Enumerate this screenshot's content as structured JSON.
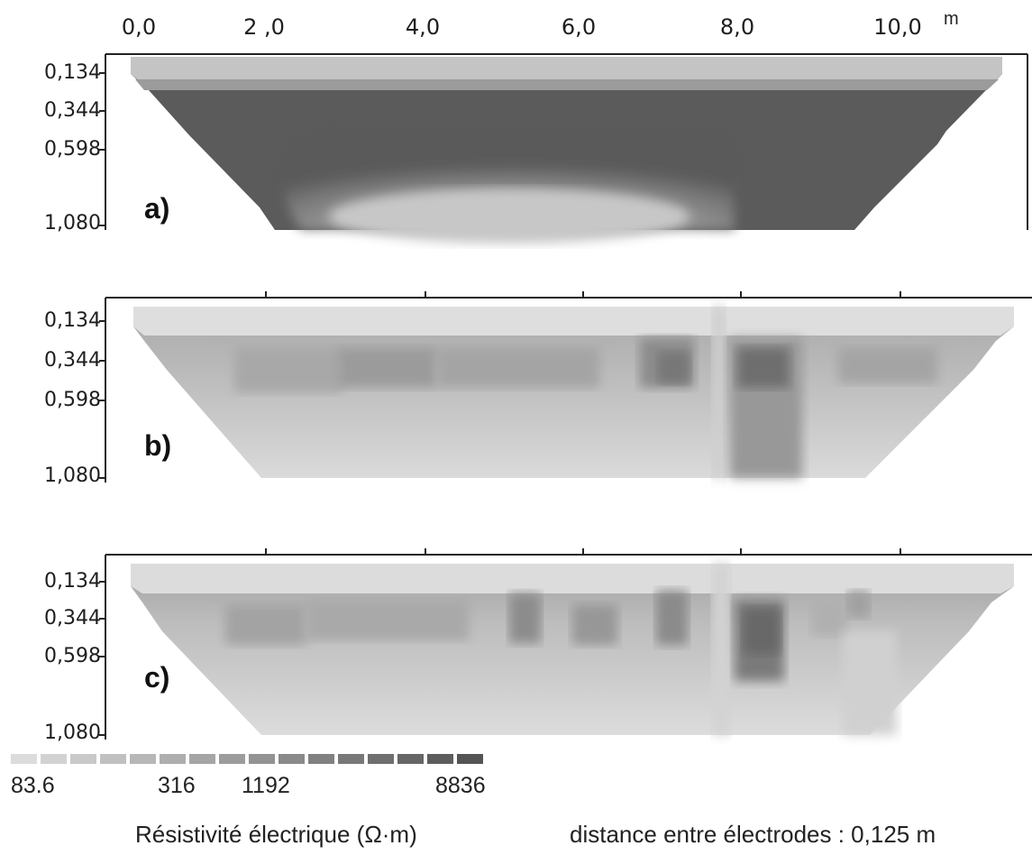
{
  "x_axis": {
    "ticks": [
      "0,0",
      "2 ,0",
      "4,0",
      "6,0",
      "8,0",
      "10,0"
    ],
    "unit": "m"
  },
  "y_axis": {
    "ticks": [
      "0,134",
      "0,344",
      "0,598",
      "1,080"
    ]
  },
  "panels": [
    {
      "label": "a)"
    },
    {
      "label": "b)"
    },
    {
      "label": "c)"
    }
  ],
  "legend": {
    "values": [
      "83.6",
      "316",
      "1192",
      "8836"
    ],
    "title": "Résistivité électrique (Ω·m)",
    "colors": [
      "#dcdcdc",
      "#d2d2d2",
      "#c9c9c9",
      "#c0c0c0",
      "#b7b7b7",
      "#aeaeae",
      "#a5a5a5",
      "#9c9c9c",
      "#939393",
      "#8a8a8a",
      "#818181",
      "#787878",
      "#6f6f6f",
      "#666666",
      "#5d5d5d",
      "#545454"
    ]
  },
  "note": "distance entre électrodes : 0,125 m"
}
